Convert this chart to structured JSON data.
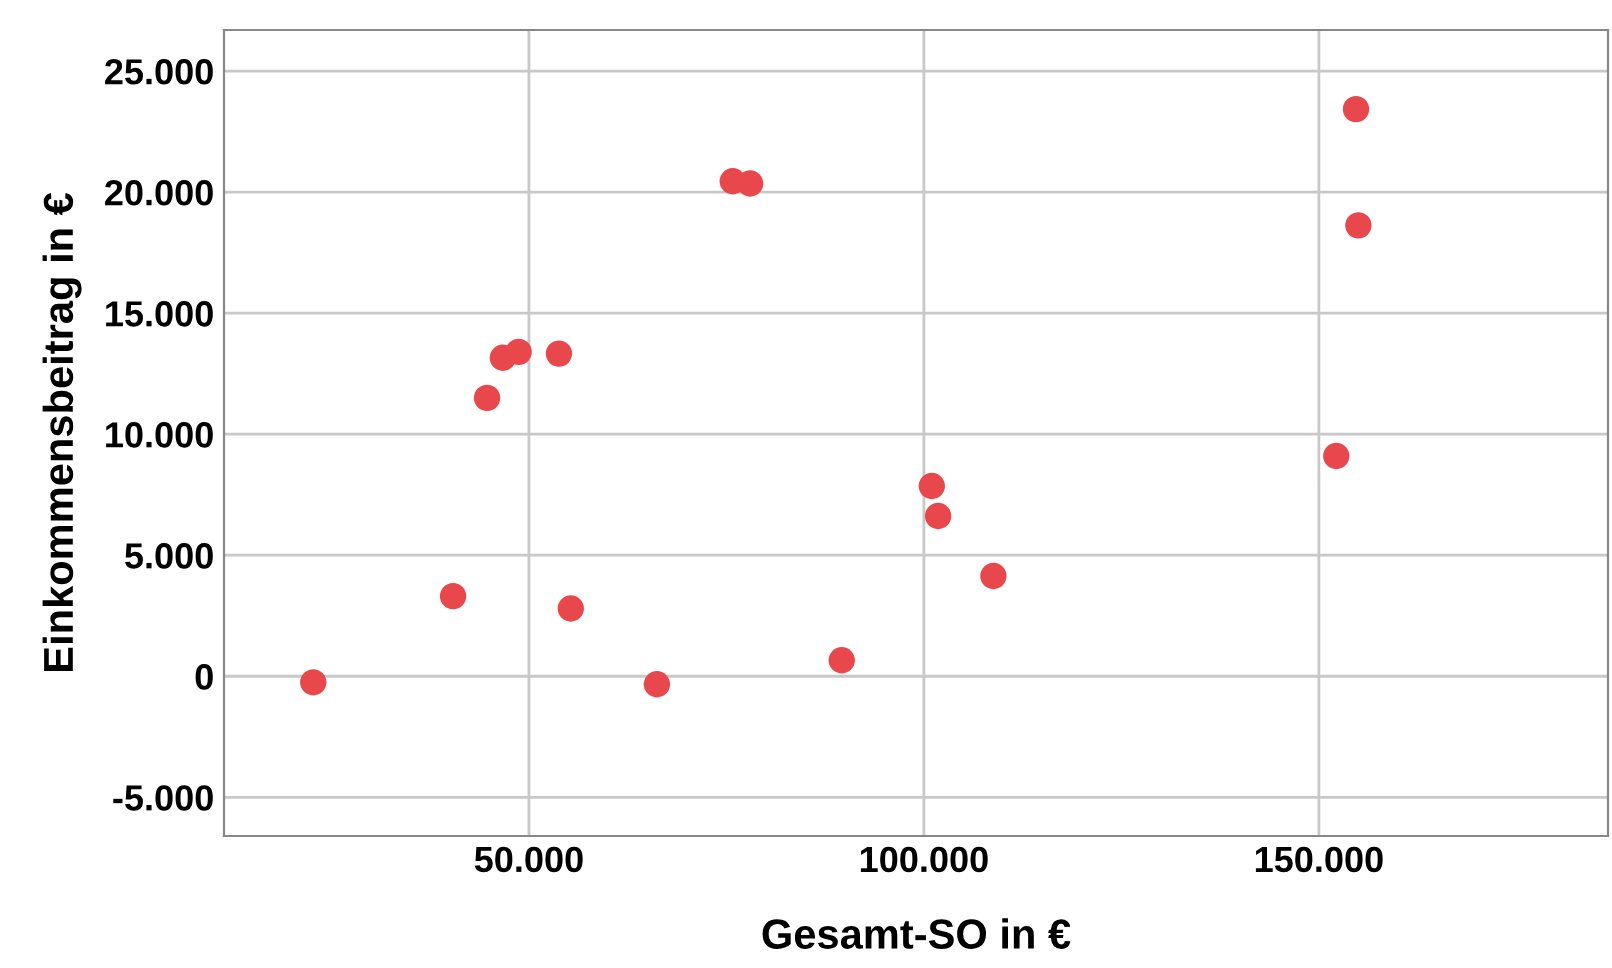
{
  "chart_data": {
    "type": "scatter",
    "xlabel": "Gesamt-SO in €",
    "ylabel": "Einkommensbeitrag in €",
    "x": [
      22700,
      40400,
      44700,
      46700,
      48700,
      53800,
      55300,
      66200,
      75800,
      78000,
      89600,
      101000,
      101800,
      108800,
      152200,
      154700,
      155000
    ],
    "series": [
      {
        "color": "#e8474b",
        "values": [
          -250,
          3310,
          11500,
          13160,
          13400,
          13330,
          2800,
          -330,
          20450,
          20360,
          660,
          7860,
          6620,
          4140,
          9100,
          23430,
          18630
        ]
      }
    ],
    "xlim": [
      11400,
      186600
    ],
    "ylim": [
      -6600,
      26700
    ],
    "xticks": [
      {
        "value": 50000,
        "label": "50.000"
      },
      {
        "value": 100000,
        "label": "100.000"
      },
      {
        "value": 150000,
        "label": "150.000"
      }
    ],
    "yticks": [
      {
        "value": -5000,
        "label": "-5.000"
      },
      {
        "value": 0,
        "label": "0"
      },
      {
        "value": 5000,
        "label": "5.000"
      },
      {
        "value": 10000,
        "label": "10.000"
      },
      {
        "value": 15000,
        "label": "15.000"
      },
      {
        "value": 20000,
        "label": "20.000"
      },
      {
        "value": 25000,
        "label": "25.000"
      }
    ],
    "grid": true,
    "marker": "circle"
  }
}
